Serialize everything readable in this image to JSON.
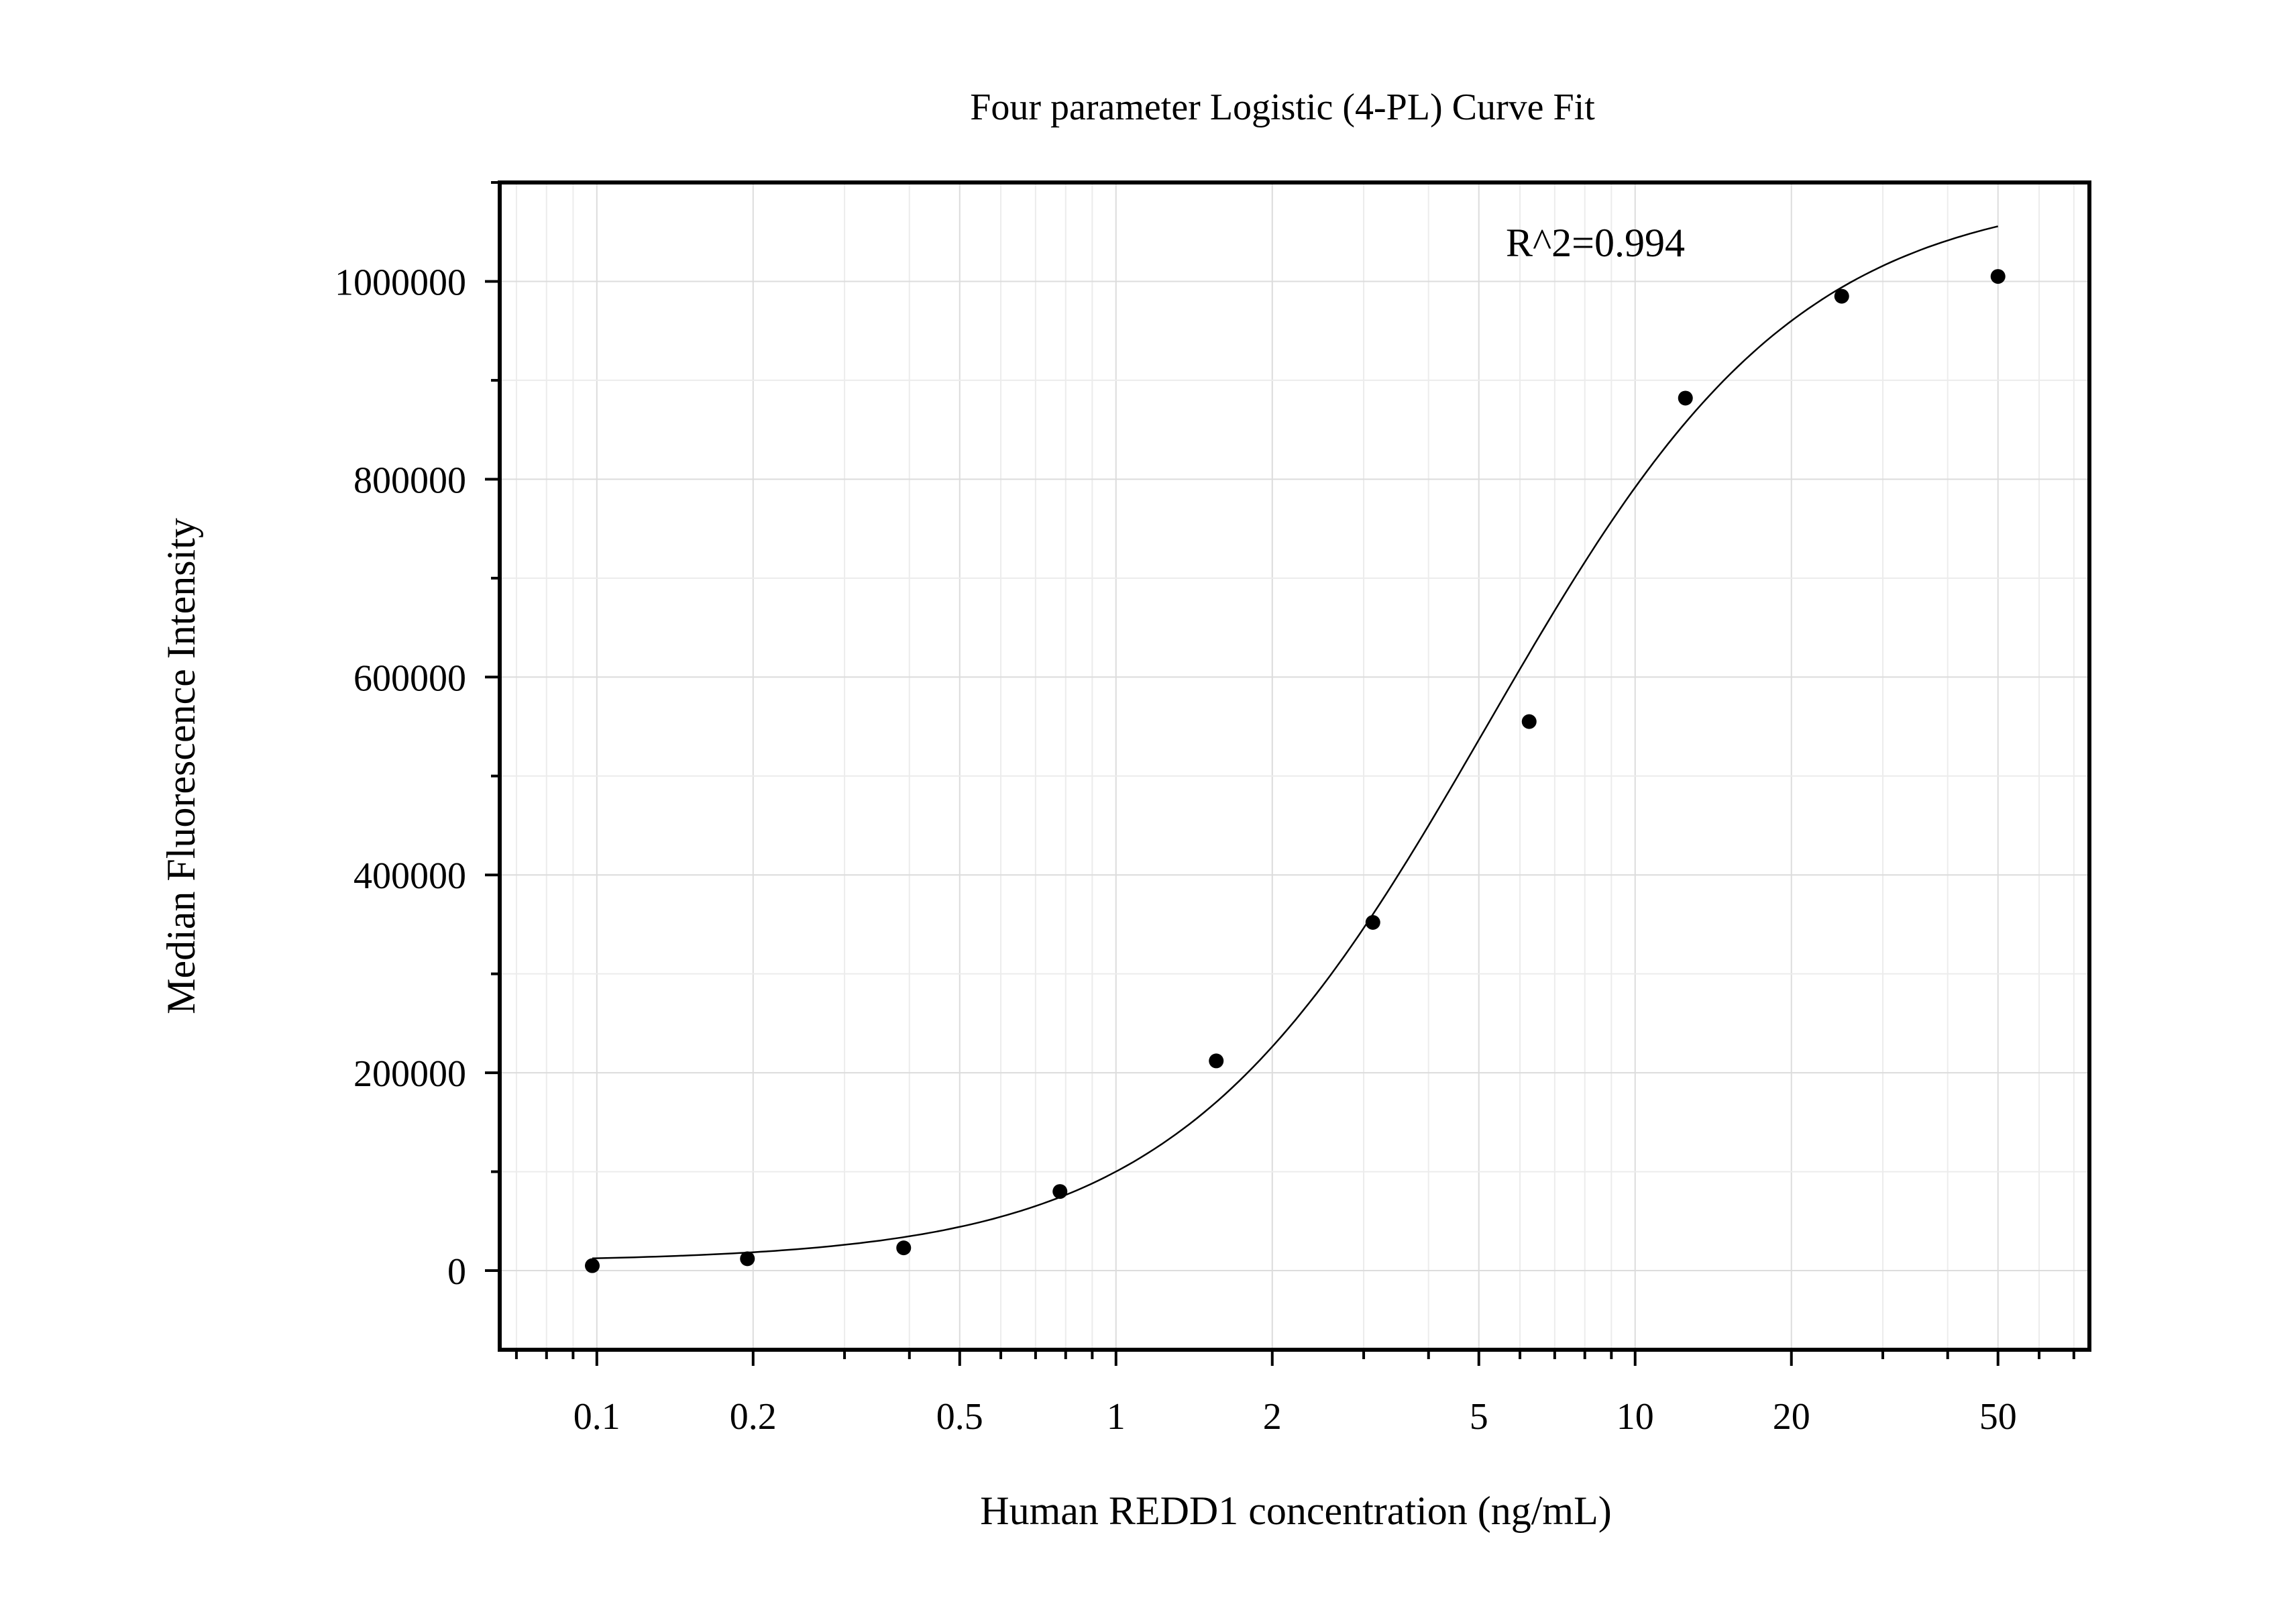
{
  "chart_data": {
    "type": "scatter",
    "title": "Four parameter Logistic (4-PL) Curve Fit",
    "xlabel": "Human REDD1 concentration (ng/mL)",
    "ylabel": "Median Fluorescence Intensity",
    "x_scale": "log",
    "xlim": [
      0.065,
      75
    ],
    "ylim": [
      -80000,
      1100000
    ],
    "x_ticks": [
      0.1,
      0.2,
      0.5,
      1,
      2,
      5,
      10,
      20,
      50
    ],
    "x_tick_labels": [
      "0.1",
      "0.2",
      "0.5",
      "1",
      "2",
      "5",
      "10",
      "20",
      "50"
    ],
    "y_ticks": [
      0,
      200000,
      400000,
      600000,
      800000,
      1000000
    ],
    "y_tick_labels": [
      "0",
      "200000",
      "400000",
      "600000",
      "800000",
      "1000000"
    ],
    "grid": true,
    "annotation": "R^2=0.994",
    "series": [
      {
        "type": "scatter",
        "x": [
          0.098,
          0.195,
          0.39,
          0.78,
          1.56,
          3.125,
          6.25,
          12.5,
          25,
          50
        ],
        "y": [
          5000,
          12000,
          23000,
          80000,
          212000,
          352000,
          555000,
          882000,
          985000,
          1005000
        ]
      }
    ],
    "fit": {
      "model": "4PL",
      "x_range": [
        0.098,
        50
      ],
      "y_range": [
        10000,
        1035000
      ]
    }
  }
}
